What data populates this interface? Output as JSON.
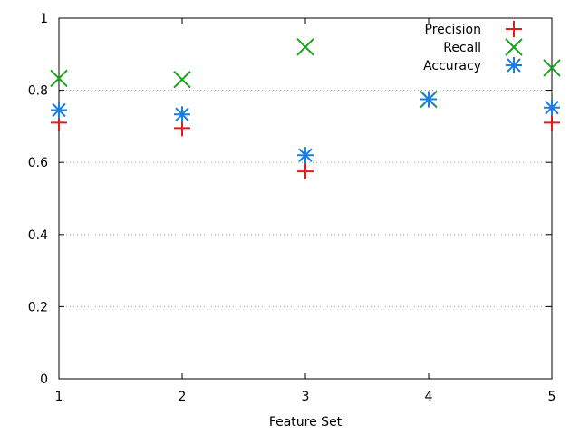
{
  "chart_data": {
    "type": "scatter",
    "xlabel": "Feature Set",
    "ylabel": "",
    "xlim": [
      1,
      5
    ],
    "ylim": [
      0,
      1
    ],
    "x_ticks": [
      "1",
      "2",
      "3",
      "4",
      "5"
    ],
    "y_ticks": [
      "0",
      "0.2",
      "0.4",
      "0.6",
      "0.8",
      "1"
    ],
    "y_tick_values": [
      0,
      0.2,
      0.4,
      0.6,
      0.8,
      1
    ],
    "grid": "horizontal dotted",
    "legend_position": "top-right",
    "x": [
      1,
      2,
      3,
      4,
      5
    ],
    "series": [
      {
        "name": "Precision",
        "marker": "plus",
        "color": "#e41a1c",
        "values": [
          0.71,
          0.695,
          0.575,
          0.775,
          0.71
        ]
      },
      {
        "name": "Recall",
        "marker": "cross",
        "color": "#1aa31a",
        "values": [
          0.833,
          0.83,
          0.92,
          0.775,
          0.862
        ]
      },
      {
        "name": "Accuracy",
        "marker": "asterisk",
        "color": "#1a7de0",
        "values": [
          0.745,
          0.733,
          0.62,
          0.775,
          0.752
        ]
      }
    ]
  }
}
